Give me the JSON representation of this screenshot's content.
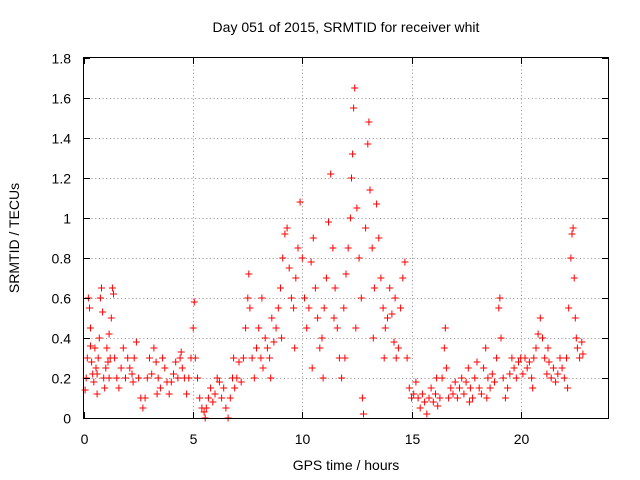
{
  "chart_data": {
    "type": "scatter",
    "title": "Day 051 of 2015, SRMTID for receiver whit",
    "xlabel": "GPS time / hours",
    "ylabel": "SRMTID / TECUs",
    "xlim": [
      0,
      24
    ],
    "ylim": [
      0,
      1.8
    ],
    "xticks": [
      0,
      5,
      10,
      15,
      20
    ],
    "xtick_labels": [
      "0",
      "5",
      "10",
      "15",
      "20"
    ],
    "yticks": [
      0,
      0.2,
      0.4,
      0.6,
      0.8,
      1,
      1.2,
      1.4,
      1.6,
      1.8
    ],
    "ytick_labels": [
      "0",
      "0.2",
      "0.4",
      "0.6",
      "0.8",
      "1",
      "1.2",
      "1.4",
      "1.6",
      "1.8"
    ],
    "grid": true,
    "marker": "plus",
    "color": "#ff0000",
    "series": [
      {
        "name": "SRMTID",
        "points": [
          [
            0.05,
            0.14
          ],
          [
            0.1,
            0.2
          ],
          [
            0.15,
            0.3
          ],
          [
            0.2,
            0.6
          ],
          [
            0.25,
            0.55
          ],
          [
            0.3,
            0.45
          ],
          [
            0.35,
            0.28
          ],
          [
            0.4,
            0.22
          ],
          [
            0.45,
            0.18
          ],
          [
            0.5,
            0.35
          ],
          [
            0.55,
            0.25
          ],
          [
            0.6,
            0.12
          ],
          [
            0.65,
            0.3
          ],
          [
            0.7,
            0.4
          ],
          [
            0.75,
            0.6
          ],
          [
            0.8,
            0.65
          ],
          [
            0.85,
            0.53
          ],
          [
            0.9,
            0.2
          ],
          [
            0.95,
            0.15
          ],
          [
            1.0,
            0.25
          ],
          [
            1.05,
            0.35
          ],
          [
            1.1,
            0.28
          ],
          [
            1.15,
            0.2
          ],
          [
            1.2,
            0.3
          ],
          [
            1.25,
            0.5
          ],
          [
            1.3,
            0.65
          ],
          [
            1.35,
            0.62
          ],
          [
            1.4,
            0.3
          ],
          [
            1.5,
            0.2
          ],
          [
            1.6,
            0.15
          ],
          [
            1.7,
            0.25
          ],
          [
            1.8,
            0.35
          ],
          [
            1.9,
            0.2
          ],
          [
            2.0,
            0.3
          ],
          [
            2.1,
            0.25
          ],
          [
            2.2,
            0.22
          ],
          [
            2.3,
            0.3
          ],
          [
            2.4,
            0.38
          ],
          [
            2.5,
            0.2
          ],
          [
            2.6,
            0.1
          ],
          [
            2.7,
            0.05
          ],
          [
            2.8,
            0.1
          ],
          [
            2.9,
            0.2
          ],
          [
            3.0,
            0.3
          ],
          [
            3.1,
            0.22
          ],
          [
            3.2,
            0.35
          ],
          [
            3.3,
            0.28
          ],
          [
            3.4,
            0.2
          ],
          [
            3.5,
            0.15
          ],
          [
            3.6,
            0.3
          ],
          [
            3.7,
            0.25
          ],
          [
            3.8,
            0.18
          ],
          [
            3.9,
            0.12
          ],
          [
            4.0,
            0.18
          ],
          [
            4.1,
            0.22
          ],
          [
            4.2,
            0.28
          ],
          [
            4.3,
            0.2
          ],
          [
            4.4,
            0.3
          ],
          [
            4.5,
            0.25
          ],
          [
            4.6,
            0.2
          ],
          [
            4.7,
            0.12
          ],
          [
            4.8,
            0.2
          ],
          [
            4.9,
            0.3
          ],
          [
            5.0,
            0.45
          ],
          [
            5.05,
            0.58
          ],
          [
            5.1,
            0.3
          ],
          [
            5.2,
            0.2
          ],
          [
            5.3,
            0.1
          ],
          [
            5.4,
            0.05
          ],
          [
            5.5,
            0.03
          ],
          [
            5.55,
            0.0
          ],
          [
            5.6,
            0.05
          ],
          [
            5.7,
            0.1
          ],
          [
            5.8,
            0.15
          ],
          [
            5.9,
            0.08
          ],
          [
            6.0,
            0.12
          ],
          [
            6.1,
            0.2
          ],
          [
            6.2,
            0.18
          ],
          [
            6.3,
            0.1
          ],
          [
            6.4,
            0.15
          ],
          [
            6.5,
            0.05
          ],
          [
            6.6,
            0.0
          ],
          [
            6.7,
            0.1
          ],
          [
            6.8,
            0.2
          ],
          [
            6.9,
            0.15
          ],
          [
            7.0,
            0.2
          ],
          [
            7.1,
            0.28
          ],
          [
            7.2,
            0.18
          ],
          [
            7.3,
            0.3
          ],
          [
            7.4,
            0.45
          ],
          [
            7.5,
            0.6
          ],
          [
            7.55,
            0.72
          ],
          [
            7.6,
            0.55
          ],
          [
            7.7,
            0.3
          ],
          [
            7.8,
            0.2
          ],
          [
            7.9,
            0.35
          ],
          [
            8.0,
            0.45
          ],
          [
            8.1,
            0.3
          ],
          [
            8.2,
            0.25
          ],
          [
            8.3,
            0.4
          ],
          [
            8.4,
            0.35
          ],
          [
            8.5,
            0.3
          ],
          [
            8.6,
            0.5
          ],
          [
            8.7,
            0.38
          ],
          [
            8.8,
            0.45
          ],
          [
            8.9,
            0.55
          ],
          [
            9.0,
            0.65
          ],
          [
            9.1,
            0.8
          ],
          [
            9.2,
            0.92
          ],
          [
            9.3,
            0.95
          ],
          [
            9.4,
            0.75
          ],
          [
            9.5,
            0.6
          ],
          [
            9.6,
            0.55
          ],
          [
            9.7,
            0.7
          ],
          [
            9.8,
            0.85
          ],
          [
            9.9,
            1.08
          ],
          [
            10.0,
            0.8
          ],
          [
            10.1,
            0.6
          ],
          [
            10.2,
            0.45
          ],
          [
            10.3,
            0.55
          ],
          [
            10.4,
            0.78
          ],
          [
            10.5,
            0.9
          ],
          [
            10.6,
            0.65
          ],
          [
            10.7,
            0.5
          ],
          [
            10.8,
            0.35
          ],
          [
            10.9,
            0.4
          ],
          [
            11.0,
            0.55
          ],
          [
            11.1,
            0.7
          ],
          [
            11.2,
            0.98
          ],
          [
            11.3,
            1.22
          ],
          [
            11.4,
            0.85
          ],
          [
            11.5,
            0.65
          ],
          [
            11.6,
            0.45
          ],
          [
            11.7,
            0.3
          ],
          [
            11.8,
            0.2
          ],
          [
            11.9,
            0.55
          ],
          [
            12.0,
            0.72
          ],
          [
            12.1,
            0.85
          ],
          [
            12.2,
            1.0
          ],
          [
            12.25,
            1.2
          ],
          [
            12.3,
            1.32
          ],
          [
            12.35,
            1.55
          ],
          [
            12.4,
            1.65
          ],
          [
            12.5,
            1.05
          ],
          [
            12.6,
            0.8
          ],
          [
            12.7,
            0.6
          ],
          [
            12.75,
            0.1
          ],
          [
            12.8,
            0.02
          ],
          [
            12.9,
            0.95
          ],
          [
            13.0,
            1.37
          ],
          [
            13.05,
            1.48
          ],
          [
            13.1,
            1.14
          ],
          [
            13.2,
            0.85
          ],
          [
            13.3,
            0.65
          ],
          [
            13.4,
            1.07
          ],
          [
            13.5,
            0.9
          ],
          [
            13.6,
            0.7
          ],
          [
            13.7,
            0.55
          ],
          [
            13.8,
            0.45
          ],
          [
            13.9,
            0.5
          ],
          [
            14.0,
            0.65
          ],
          [
            14.1,
            0.52
          ],
          [
            14.2,
            0.38
          ],
          [
            14.3,
            0.3
          ],
          [
            14.4,
            0.35
          ],
          [
            14.5,
            0.55
          ],
          [
            14.6,
            0.7
          ],
          [
            14.7,
            0.78
          ],
          [
            14.8,
            0.3
          ],
          [
            14.9,
            0.15
          ],
          [
            15.0,
            0.1
          ],
          [
            15.1,
            0.12
          ],
          [
            15.2,
            0.18
          ],
          [
            15.3,
            0.1
          ],
          [
            15.4,
            0.05
          ],
          [
            15.5,
            0.12
          ],
          [
            15.6,
            0.08
          ],
          [
            15.7,
            0.02
          ],
          [
            15.8,
            0.1
          ],
          [
            15.9,
            0.15
          ],
          [
            16.0,
            0.08
          ],
          [
            16.1,
            0.12
          ],
          [
            16.2,
            0.06
          ],
          [
            16.3,
            0.1
          ],
          [
            16.4,
            0.2
          ],
          [
            16.5,
            0.35
          ],
          [
            16.55,
            0.45
          ],
          [
            16.6,
            0.25
          ],
          [
            16.7,
            0.1
          ],
          [
            16.8,
            0.15
          ],
          [
            16.9,
            0.12
          ],
          [
            17.0,
            0.18
          ],
          [
            17.1,
            0.1
          ],
          [
            17.2,
            0.15
          ],
          [
            17.3,
            0.2
          ],
          [
            17.4,
            0.12
          ],
          [
            17.5,
            0.18
          ],
          [
            17.6,
            0.25
          ],
          [
            17.7,
            0.15
          ],
          [
            17.8,
            0.1
          ],
          [
            17.9,
            0.2
          ],
          [
            18.0,
            0.28
          ],
          [
            18.1,
            0.15
          ],
          [
            18.2,
            0.12
          ],
          [
            18.3,
            0.25
          ],
          [
            18.4,
            0.35
          ],
          [
            18.5,
            0.2
          ],
          [
            18.6,
            0.15
          ],
          [
            18.7,
            0.22
          ],
          [
            18.8,
            0.18
          ],
          [
            18.9,
            0.3
          ],
          [
            19.0,
            0.55
          ],
          [
            19.05,
            0.6
          ],
          [
            19.1,
            0.4
          ],
          [
            19.2,
            0.2
          ],
          [
            19.3,
            0.1
          ],
          [
            19.4,
            0.15
          ],
          [
            19.5,
            0.22
          ],
          [
            19.6,
            0.3
          ],
          [
            19.7,
            0.25
          ],
          [
            19.8,
            0.2
          ],
          [
            19.9,
            0.28
          ],
          [
            20.0,
            0.3
          ],
          [
            20.1,
            0.22
          ],
          [
            20.2,
            0.3
          ],
          [
            20.3,
            0.25
          ],
          [
            20.4,
            0.28
          ],
          [
            20.5,
            0.2
          ],
          [
            20.6,
            0.3
          ],
          [
            20.7,
            0.35
          ],
          [
            20.8,
            0.42
          ],
          [
            20.9,
            0.5
          ],
          [
            21.0,
            0.4
          ],
          [
            21.1,
            0.3
          ],
          [
            21.2,
            0.22
          ],
          [
            21.3,
            0.28
          ],
          [
            21.4,
            0.2
          ],
          [
            21.5,
            0.25
          ],
          [
            21.6,
            0.18
          ],
          [
            21.7,
            0.22
          ],
          [
            21.8,
            0.3
          ],
          [
            21.9,
            0.25
          ],
          [
            22.0,
            0.2
          ],
          [
            22.1,
            0.3
          ],
          [
            22.2,
            0.55
          ],
          [
            22.3,
            0.8
          ],
          [
            22.35,
            0.92
          ],
          [
            22.4,
            0.95
          ],
          [
            22.45,
            0.7
          ],
          [
            22.5,
            0.5
          ],
          [
            22.55,
            0.4
          ],
          [
            22.6,
            0.35
          ],
          [
            22.7,
            0.3
          ],
          [
            22.8,
            0.38
          ],
          [
            22.85,
            0.32
          ],
          [
            0.3,
            0.36
          ],
          [
            0.6,
            0.22
          ],
          [
            1.15,
            0.42
          ],
          [
            2.25,
            0.18
          ],
          [
            3.35,
            0.12
          ],
          [
            4.45,
            0.33
          ],
          [
            6.85,
            0.3
          ],
          [
            8.15,
            0.6
          ],
          [
            8.55,
            0.2
          ],
          [
            9.05,
            0.4
          ],
          [
            9.65,
            0.35
          ],
          [
            10.45,
            0.25
          ],
          [
            10.95,
            0.2
          ],
          [
            11.45,
            0.5
          ],
          [
            11.95,
            0.3
          ],
          [
            12.45,
            0.45
          ],
          [
            13.25,
            0.4
          ],
          [
            13.75,
            0.3
          ],
          [
            14.25,
            0.6
          ],
          [
            16.15,
            0.2
          ],
          [
            17.65,
            0.08
          ],
          [
            18.45,
            0.1
          ],
          [
            20.55,
            0.15
          ],
          [
            21.25,
            0.35
          ],
          [
            22.15,
            0.15
          ]
        ]
      }
    ]
  }
}
